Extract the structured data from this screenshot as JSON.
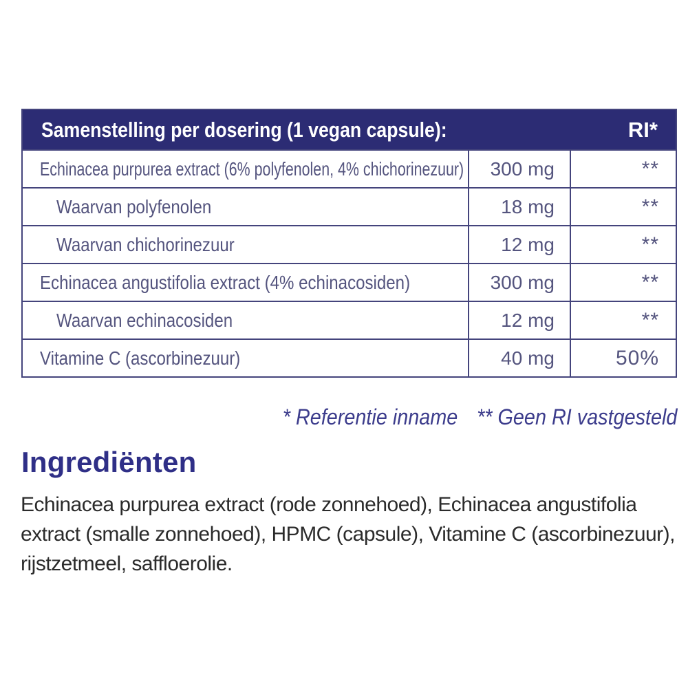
{
  "colors": {
    "page_bg": "#ffffff",
    "header_bg": "#2c2c74",
    "header_text": "#ffffff",
    "table_border": "#44447c",
    "table_text": "#54547e",
    "footnote_text": "#3c3c8c",
    "heading_text": "#2f2f87",
    "body_text": "#2b2b2b"
  },
  "composition_table": {
    "title": "Samenstelling per dosering (1 vegan capsule):",
    "ri_header": "RI*",
    "rows": [
      {
        "name": "Echinacea purpurea extract (6% polyfenolen, 4% chichorinezuur)",
        "amount": "300 mg",
        "ri": "**"
      },
      {
        "name": "Waarvan polyfenolen",
        "amount": "18 mg",
        "ri": "**"
      },
      {
        "name": "Waarvan chichorinezuur",
        "amount": "12 mg",
        "ri": "**"
      },
      {
        "name": "Echinacea angustifolia extract (4% echinacosiden)",
        "amount": "300 mg",
        "ri": "**"
      },
      {
        "name": "Waarvan echinacosiden",
        "amount": "12 mg",
        "ri": "**"
      },
      {
        "name": "Vitamine C (ascorbinezuur)",
        "amount": "40 mg",
        "ri": "50%"
      }
    ]
  },
  "footnotes": {
    "reference_intake": "* Referentie inname",
    "no_ri_established": "** Geen RI vastgesteld"
  },
  "ingredients": {
    "heading": "Ingrediënten",
    "text": "Echinacea purpurea extract (rode zonnehoed), Echinacea angustifolia extract (smalle zonnehoed), HPMC (capsule), Vitamine C (ascorbinezuur), rijstzetmeel, saffloerolie."
  }
}
